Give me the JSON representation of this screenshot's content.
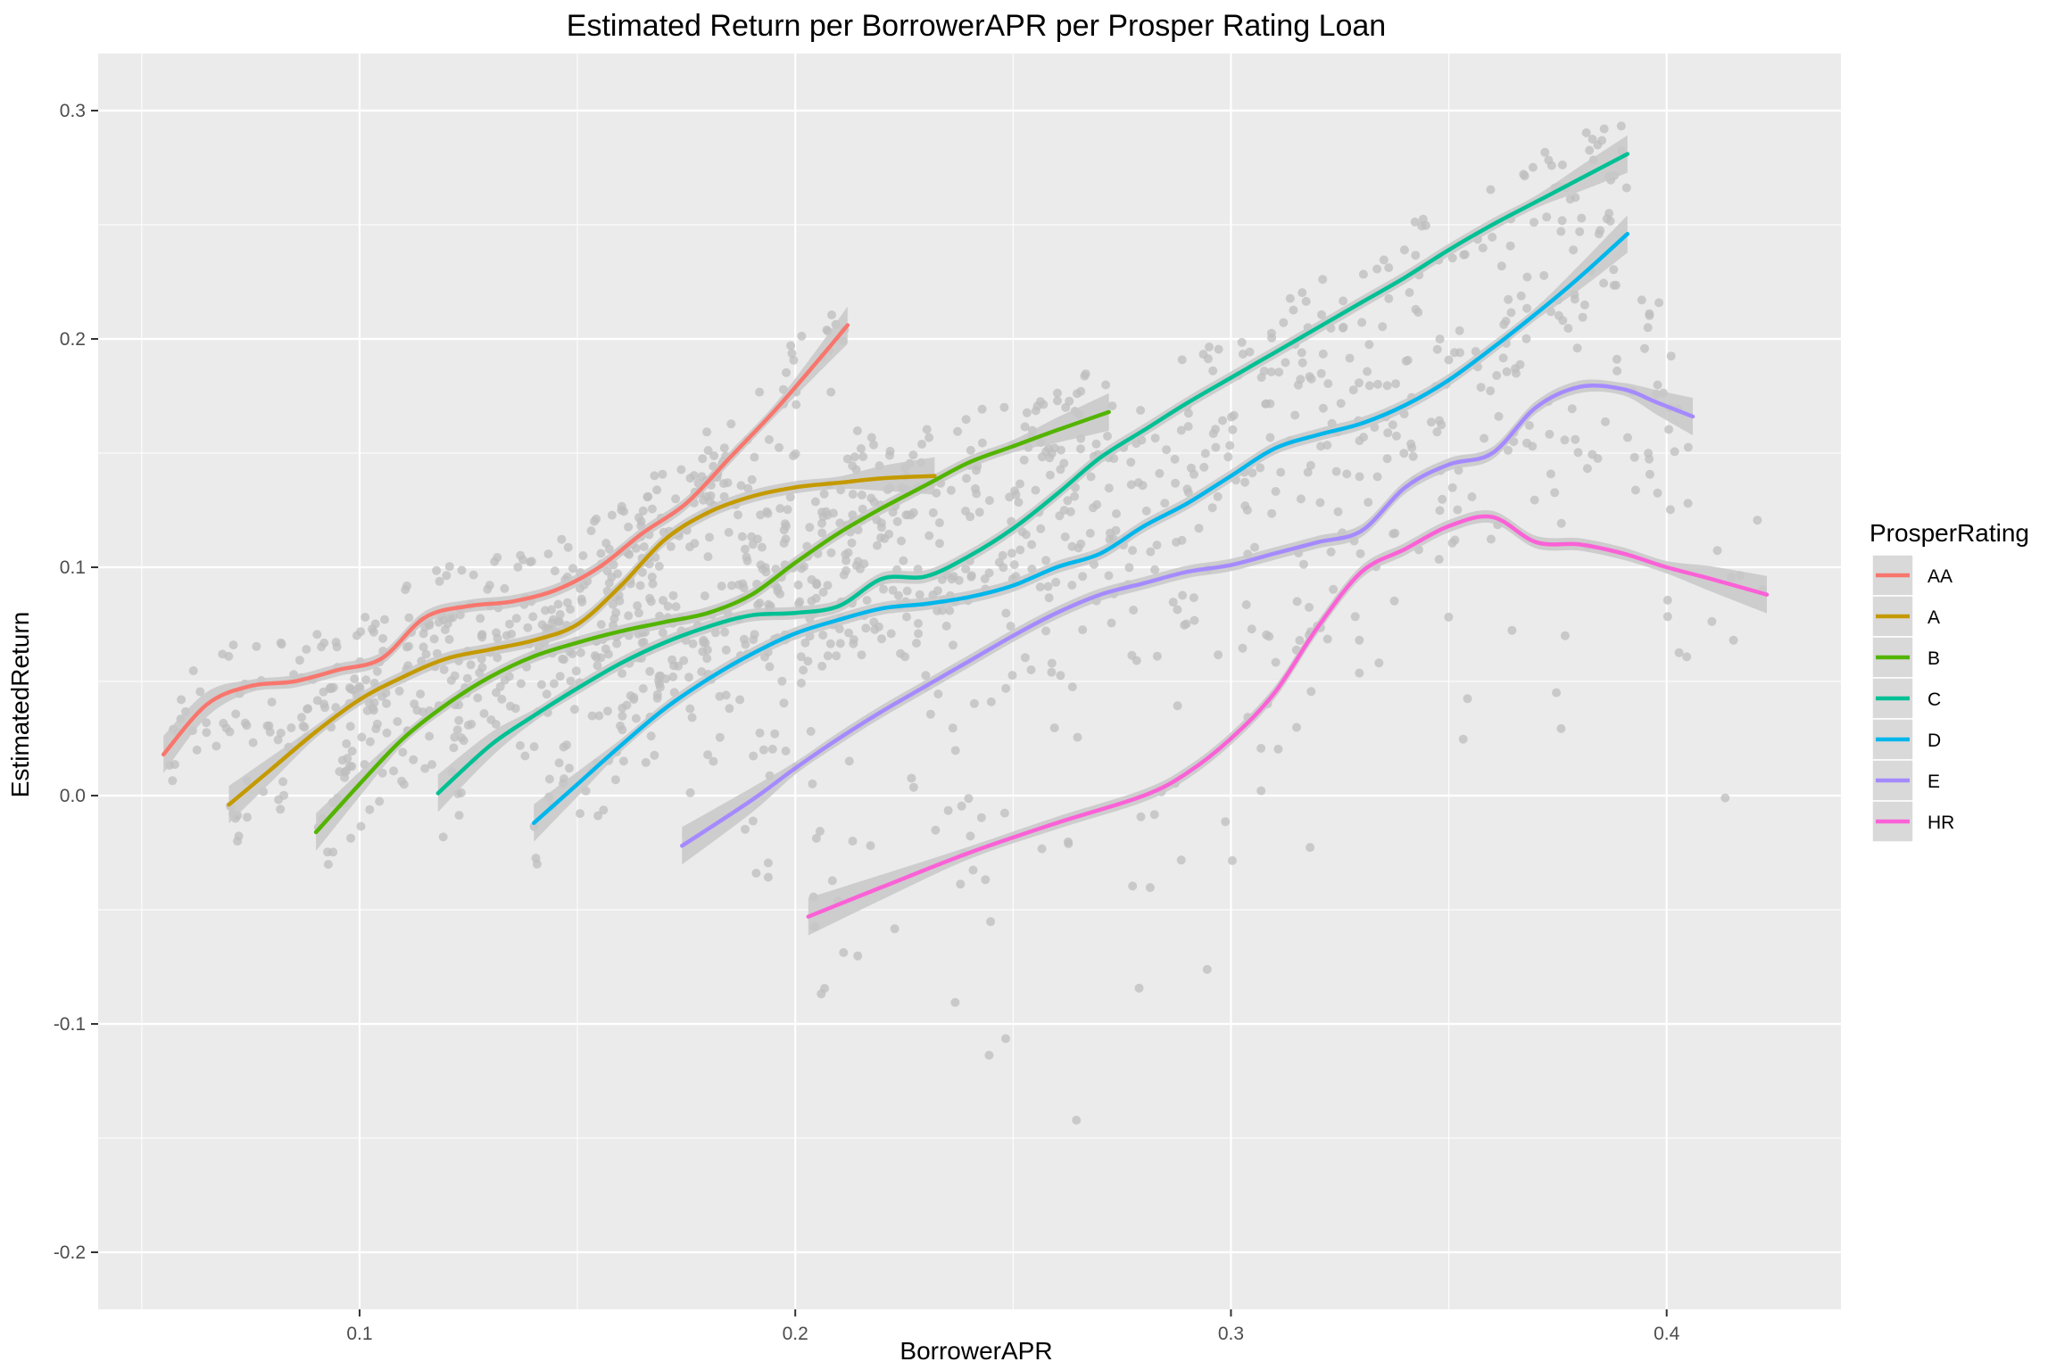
{
  "chart_data": {
    "type": "scatter",
    "title": "Estimated Return per BorrowerAPR per Prosper Rating Loan",
    "xlabel": "BorrowerAPR",
    "ylabel": "EstimatedReturn",
    "xlim": [
      0.04,
      0.44
    ],
    "ylim": [
      -0.225,
      0.325
    ],
    "x_ticks": [
      0.1,
      0.2,
      0.3,
      0.4
    ],
    "x_tick_labels": [
      "0.1",
      "0.2",
      "0.3",
      "0.4"
    ],
    "y_ticks": [
      -0.2,
      -0.1,
      0.0,
      0.1,
      0.2,
      0.3
    ],
    "y_tick_labels": [
      "-0.2",
      "-0.1",
      "0.0",
      "0.1",
      "0.2",
      "0.3"
    ],
    "grid": true,
    "background": "#ebebeb",
    "point_color": "#bdbdbd",
    "ribbon_color": "#c8c8c8",
    "legend": {
      "title": "ProsperRating",
      "placement": "right"
    },
    "series": [
      {
        "name": "AA",
        "color": "#F8766D",
        "x": [
          0.055,
          0.065,
          0.075,
          0.085,
          0.095,
          0.105,
          0.115,
          0.125,
          0.135,
          0.145,
          0.155,
          0.165,
          0.175,
          0.185,
          0.195,
          0.205,
          0.212
        ],
        "y": [
          0.018,
          0.04,
          0.048,
          0.05,
          0.055,
          0.06,
          0.078,
          0.083,
          0.085,
          0.09,
          0.1,
          0.115,
          0.128,
          0.148,
          0.168,
          0.19,
          0.206
        ]
      },
      {
        "name": "A",
        "color": "#C49A00",
        "x": [
          0.07,
          0.08,
          0.09,
          0.1,
          0.11,
          0.12,
          0.13,
          0.14,
          0.15,
          0.16,
          0.17,
          0.18,
          0.19,
          0.2,
          0.21,
          0.22,
          0.232
        ],
        "y": [
          -0.004,
          0.012,
          0.028,
          0.042,
          0.052,
          0.06,
          0.064,
          0.068,
          0.075,
          0.092,
          0.112,
          0.124,
          0.131,
          0.135,
          0.137,
          0.139,
          0.14
        ]
      },
      {
        "name": "B",
        "color": "#53B400",
        "x": [
          0.09,
          0.1,
          0.11,
          0.12,
          0.13,
          0.14,
          0.15,
          0.16,
          0.17,
          0.18,
          0.19,
          0.2,
          0.21,
          0.22,
          0.23,
          0.24,
          0.25,
          0.26,
          0.272
        ],
        "y": [
          -0.016,
          0.005,
          0.025,
          0.04,
          0.052,
          0.061,
          0.067,
          0.072,
          0.076,
          0.08,
          0.088,
          0.102,
          0.115,
          0.126,
          0.136,
          0.146,
          0.153,
          0.16,
          0.168
        ]
      },
      {
        "name": "C",
        "color": "#00C094",
        "x": [
          0.118,
          0.13,
          0.14,
          0.15,
          0.16,
          0.17,
          0.18,
          0.19,
          0.2,
          0.21,
          0.22,
          0.23,
          0.24,
          0.25,
          0.26,
          0.27,
          0.28,
          0.29,
          0.3,
          0.31,
          0.32,
          0.33,
          0.34,
          0.35,
          0.36,
          0.37,
          0.38,
          0.391
        ],
        "y": [
          0.001,
          0.022,
          0.035,
          0.047,
          0.058,
          0.067,
          0.074,
          0.079,
          0.08,
          0.083,
          0.095,
          0.096,
          0.105,
          0.117,
          0.132,
          0.148,
          0.16,
          0.172,
          0.183,
          0.194,
          0.205,
          0.216,
          0.227,
          0.239,
          0.25,
          0.26,
          0.27,
          0.281
        ]
      },
      {
        "name": "D",
        "color": "#00B6EB",
        "x": [
          0.14,
          0.15,
          0.16,
          0.17,
          0.18,
          0.19,
          0.2,
          0.21,
          0.22,
          0.23,
          0.24,
          0.25,
          0.26,
          0.27,
          0.28,
          0.29,
          0.3,
          0.31,
          0.32,
          0.33,
          0.34,
          0.35,
          0.36,
          0.37,
          0.38,
          0.391
        ],
        "y": [
          -0.012,
          0.005,
          0.022,
          0.038,
          0.051,
          0.062,
          0.071,
          0.077,
          0.082,
          0.084,
          0.087,
          0.092,
          0.1,
          0.106,
          0.118,
          0.128,
          0.14,
          0.152,
          0.158,
          0.163,
          0.171,
          0.182,
          0.196,
          0.211,
          0.227,
          0.246
        ]
      },
      {
        "name": "E",
        "color": "#A58AFF",
        "x": [
          0.174,
          0.19,
          0.2,
          0.21,
          0.22,
          0.23,
          0.24,
          0.25,
          0.26,
          0.27,
          0.28,
          0.29,
          0.3,
          0.31,
          0.32,
          0.33,
          0.34,
          0.35,
          0.36,
          0.37,
          0.38,
          0.39,
          0.398,
          0.406
        ],
        "y": [
          -0.022,
          -0.002,
          0.012,
          0.025,
          0.037,
          0.048,
          0.059,
          0.07,
          0.08,
          0.088,
          0.093,
          0.098,
          0.101,
          0.106,
          0.111,
          0.116,
          0.135,
          0.145,
          0.15,
          0.17,
          0.179,
          0.178,
          0.172,
          0.166
        ]
      },
      {
        "name": "HR",
        "color": "#FB61D7",
        "x": [
          0.203,
          0.22,
          0.24,
          0.26,
          0.28,
          0.29,
          0.3,
          0.31,
          0.32,
          0.33,
          0.34,
          0.35,
          0.36,
          0.37,
          0.38,
          0.39,
          0.4,
          0.41,
          0.423
        ],
        "y": [
          -0.053,
          -0.04,
          -0.025,
          -0.012,
          0.0,
          0.01,
          0.025,
          0.045,
          0.074,
          0.098,
          0.108,
          0.118,
          0.122,
          0.111,
          0.11,
          0.106,
          0.1,
          0.095,
          0.088
        ]
      }
    ]
  }
}
